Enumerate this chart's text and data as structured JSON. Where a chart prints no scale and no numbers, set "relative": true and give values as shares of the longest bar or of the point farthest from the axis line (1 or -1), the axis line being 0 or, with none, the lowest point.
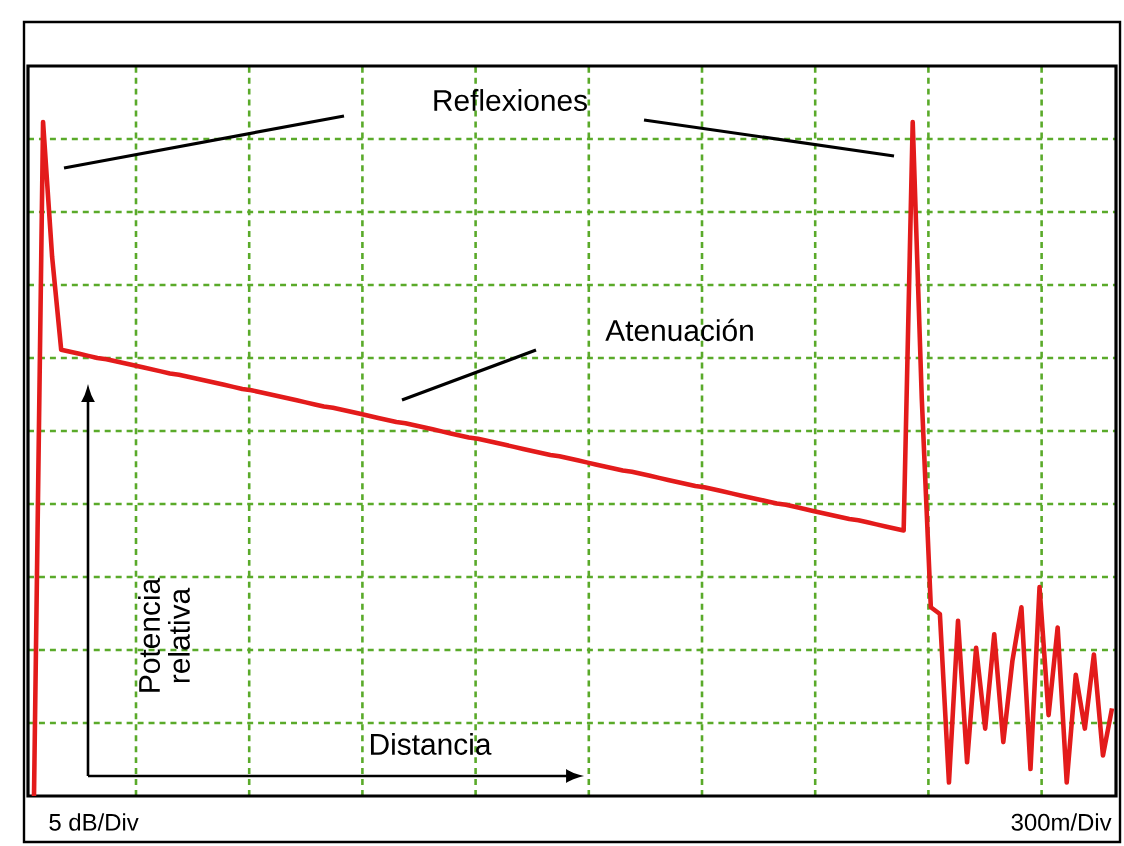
{
  "chart_data": {
    "type": "line",
    "relative": true,
    "grid": true,
    "categories": [
      null,
      null,
      null,
      null,
      null,
      null,
      null,
      null,
      null,
      null,
      null,
      null,
      null,
      null,
      null,
      null,
      null,
      null,
      null,
      null,
      null,
      null,
      null,
      null,
      null,
      null,
      null,
      null,
      null,
      null,
      null,
      null,
      null,
      null,
      null,
      null,
      null,
      null,
      null,
      null,
      null,
      null,
      null,
      null,
      null,
      null,
      null,
      null,
      null,
      null,
      null,
      null,
      null,
      null,
      null,
      null,
      null,
      null,
      null,
      null,
      null,
      null,
      null,
      null,
      null,
      null,
      null,
      null,
      null,
      null,
      null,
      null,
      null,
      null,
      null,
      null,
      null,
      null,
      null,
      null,
      null,
      null,
      null,
      null,
      null,
      null,
      null,
      null,
      null,
      null,
      null,
      null,
      null,
      null,
      null,
      null,
      null,
      null,
      null,
      null,
      null,
      null,
      null,
      null,
      null,
      null,
      null,
      null,
      null,
      null,
      null,
      null,
      null,
      null,
      null,
      null,
      null,
      null,
      null,
      null
    ],
    "series": [
      {
        "color": "#e31b1b",
        "values": [
          0,
          1.0,
          0.8,
          0.662,
          0.659,
          0.656,
          0.653,
          0.65,
          0.648,
          0.645,
          0.642,
          0.639,
          0.636,
          0.633,
          0.63,
          0.627,
          0.625,
          0.622,
          0.619,
          0.616,
          0.613,
          0.61,
          0.607,
          0.604,
          0.602,
          0.599,
          0.596,
          0.593,
          0.59,
          0.587,
          0.584,
          0.581,
          0.578,
          0.576,
          0.573,
          0.57,
          0.567,
          0.564,
          0.561,
          0.558,
          0.555,
          0.553,
          0.55,
          0.547,
          0.544,
          0.541,
          0.538,
          0.535,
          0.532,
          0.53,
          0.527,
          0.524,
          0.521,
          0.518,
          0.515,
          0.512,
          0.509,
          0.506,
          0.504,
          0.501,
          0.498,
          0.495,
          0.492,
          0.489,
          0.486,
          0.483,
          0.481,
          0.478,
          0.475,
          0.472,
          0.469,
          0.466,
          0.463,
          0.46,
          0.458,
          0.455,
          0.452,
          0.449,
          0.446,
          0.443,
          0.44,
          0.437,
          0.434,
          0.432,
          0.429,
          0.426,
          0.423,
          0.42,
          0.417,
          0.414,
          0.411,
          0.409,
          0.406,
          0.403,
          0.4,
          0.397,
          0.394,
          1.0,
          0.59,
          0.28,
          0.27,
          0.02,
          0.26,
          0.05,
          0.22,
          0.1,
          0.24,
          0.08,
          0.2,
          0.28,
          0.04,
          0.31,
          0.12,
          0.25,
          0.02,
          0.18,
          0.1,
          0.21,
          0.06,
          0.13
        ]
      }
    ],
    "annotations": [
      "Reflexiones",
      "Atenuación",
      "Potencia relativa",
      "Distancia",
      "5 dB/Div",
      "300m/Div"
    ]
  }
}
